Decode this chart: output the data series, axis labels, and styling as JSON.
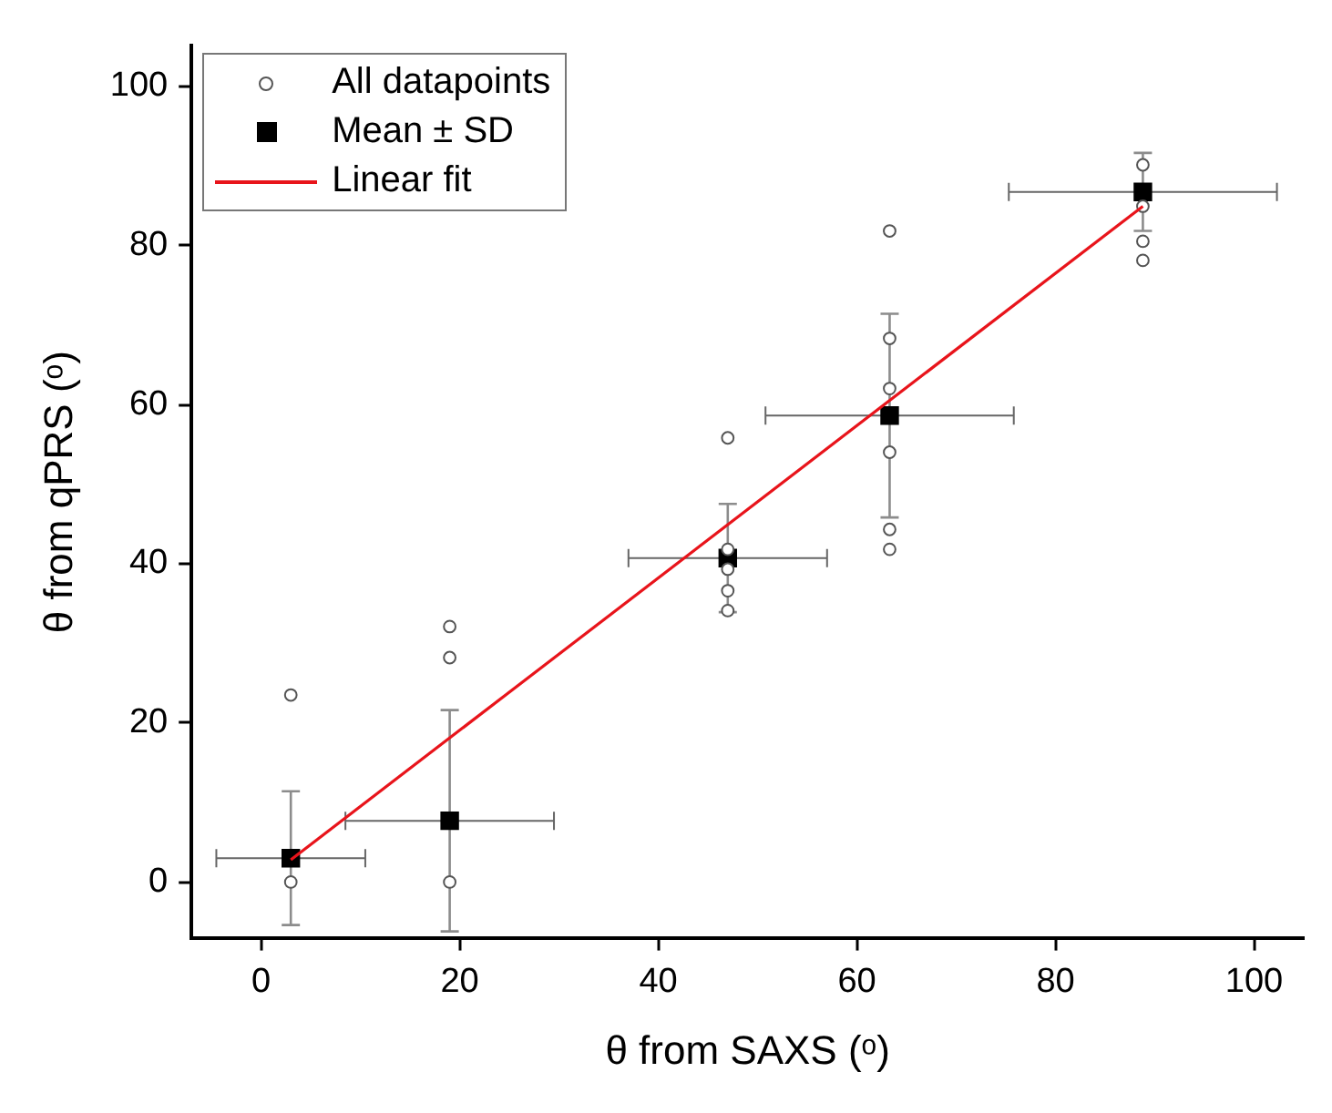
{
  "chart_data": {
    "type": "scatter",
    "xlabel": "θ from SAXS (ᵒ)",
    "ylabel": "θ from qPRS (ᵒ)",
    "xlim": [
      -7,
      105
    ],
    "ylim": [
      -7,
      105
    ],
    "xticks": [
      0,
      20,
      40,
      60,
      80,
      100
    ],
    "yticks": [
      0,
      20,
      40,
      60,
      80,
      100
    ],
    "grid": false,
    "legend": "top left",
    "series": [
      {
        "name": "All datapoints",
        "marker": "circle",
        "color": "#555555",
        "x": [
          3,
          3,
          19,
          19,
          19,
          47,
          47,
          47,
          47,
          47,
          63.3,
          63.3,
          63.3,
          63.3,
          63.3,
          63.3,
          88.8,
          88.8,
          88.8,
          88.8
        ],
        "values": [
          23.5,
          0,
          32.1,
          28.2,
          0,
          55.8,
          41.8,
          39.3,
          36.6,
          34.1,
          81.8,
          68.3,
          62,
          54,
          44.3,
          41.8,
          90.1,
          84.9,
          80.5,
          78.1
        ]
      },
      {
        "name": "Mean ± SD",
        "marker": "square",
        "color": "#000000",
        "x": [
          3,
          19,
          47,
          63.3,
          88.8
        ],
        "values": [
          3,
          7.7,
          40.7,
          58.6,
          86.7
        ],
        "errors": [
          8.4,
          13.9,
          6.8,
          12.8,
          4.9
        ],
        "xerrors": [
          7.5,
          10.5,
          10,
          12.5,
          13.5
        ]
      },
      {
        "name": "Linear fit",
        "type": "line",
        "marker": "none",
        "line_style": "solid",
        "color": "#e8141b",
        "x": [
          3,
          88.8
        ],
        "values": [
          2.8,
          84.9
        ]
      }
    ]
  }
}
